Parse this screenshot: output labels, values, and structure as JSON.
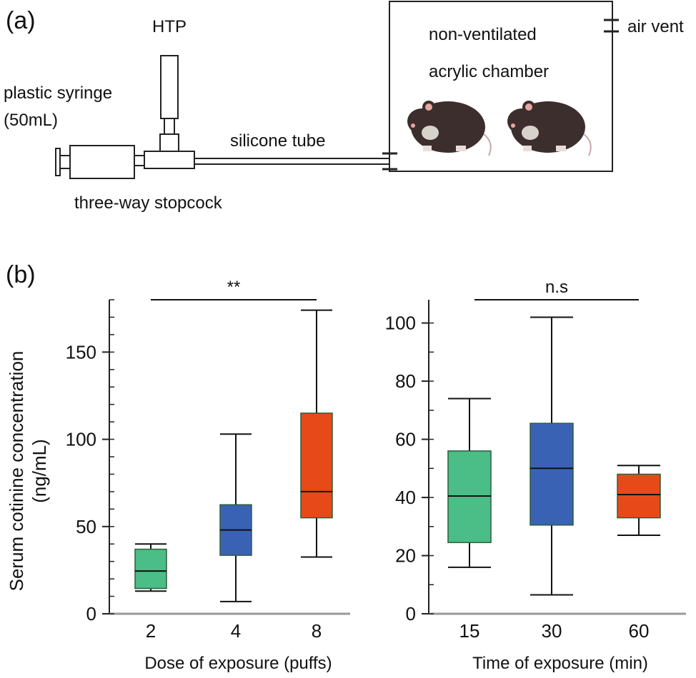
{
  "panel_a": {
    "label": "(a)",
    "labels": {
      "htp": "HTP",
      "syringe": "plastic syringe",
      "syringe_volume": "(50mL)",
      "stopcock": "three-way stopcock",
      "tube": "silicone tube",
      "chamber_line1": "non-ventilated",
      "chamber_line2": "acrylic chamber",
      "vent": "air vent"
    }
  },
  "panel_b": {
    "label": "(b)",
    "ylabel_line1": "Serum cotinine concentration",
    "ylabel_line2": "(ng/mL)"
  },
  "colors": {
    "green": "#4bbd87",
    "blue": "#3a62b4",
    "orange": "#e64a19",
    "box_edge": "#2d5e3a"
  },
  "chart_data": [
    {
      "type": "box",
      "xlabel": "Dose of exposure (puffs)",
      "categories": [
        "2",
        "4",
        "8"
      ],
      "ylim": [
        0,
        180
      ],
      "yticks": [
        0,
        50,
        100,
        150
      ],
      "significance": "**",
      "boxes": [
        {
          "category": "2",
          "min": 13,
          "q1": 14.5,
          "median": 24.5,
          "q3": 37,
          "max": 40,
          "color": "#4bbd87"
        },
        {
          "category": "4",
          "min": 7,
          "q1": 33.5,
          "median": 48,
          "q3": 62.5,
          "max": 103,
          "color": "#3a62b4"
        },
        {
          "category": "8",
          "min": 32.5,
          "q1": 55,
          "median": 70,
          "q3": 115,
          "max": 174,
          "color": "#e64a19"
        }
      ]
    },
    {
      "type": "box",
      "xlabel": "Time of exposure (min)",
      "categories": [
        "15",
        "30",
        "60"
      ],
      "ylim": [
        0,
        108
      ],
      "yticks": [
        0,
        20,
        40,
        60,
        80,
        100
      ],
      "significance": "n.s",
      "boxes": [
        {
          "category": "15",
          "min": 16,
          "q1": 24.5,
          "median": 40.5,
          "q3": 56,
          "max": 74,
          "color": "#4bbd87"
        },
        {
          "category": "30",
          "min": 6.5,
          "q1": 30.5,
          "median": 50,
          "q3": 65.5,
          "max": 102,
          "color": "#3a62b4"
        },
        {
          "category": "60",
          "min": 27,
          "q1": 33,
          "median": 41,
          "q3": 48,
          "max": 51,
          "color": "#e64a19"
        }
      ]
    }
  ]
}
